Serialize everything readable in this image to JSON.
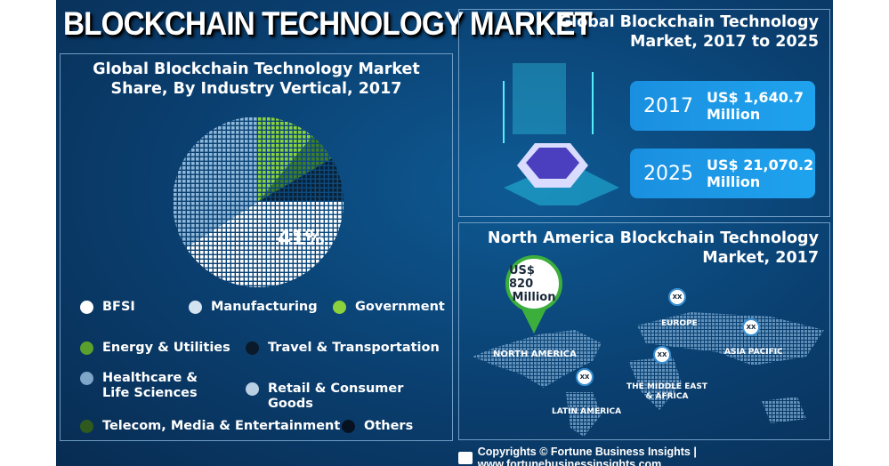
{
  "title": "BLOCKCHAIN TECHNOLOGY MARKET",
  "pie_panel": {
    "title_line1": "Global Blockchain Technology Market",
    "title_line2": "Share, By Industry Vertical, 2017"
  },
  "chart_data": {
    "type": "pie",
    "title": "Global Blockchain Technology Market Share, By Industry Vertical, 2017",
    "slices": [
      {
        "name": "Government",
        "value": 11,
        "color": "#8bd23c"
      },
      {
        "name": "Energy & Utilities",
        "value": 5.5,
        "color": "#3f7d2a"
      },
      {
        "name": "Travel & Transportation",
        "value": 8.5,
        "color": "#0a2238"
      },
      {
        "name": "BFSI",
        "value": 41,
        "color": "#ffffff",
        "label": "41%"
      },
      {
        "name": "Manufacturing",
        "value": 34,
        "color": "#8fb7d9"
      }
    ],
    "legend": [
      {
        "name": "BFSI",
        "color": "#ffffff"
      },
      {
        "name": "Manufacturing",
        "color": "#d4e3f0"
      },
      {
        "name": "Government",
        "color": "#8bd23c"
      },
      {
        "name": "Energy & Utilities",
        "color": "#5aa02c"
      },
      {
        "name": "Travel & Transportation",
        "color": "#0a1a2a"
      },
      {
        "name": "Healthcare & Life Sciences",
        "color": "#7ea6c8"
      },
      {
        "name": "Retail & Consumer Goods",
        "color": "#b9cfe3"
      },
      {
        "name": "Telecom, Media & Entertainment",
        "color": "#2f5a1e"
      },
      {
        "name": "Others",
        "color": "#061220"
      }
    ],
    "legend_placement": "bottom"
  },
  "legend_lines": {
    "healthcare_1": "Healthcare &",
    "healthcare_2": "Life Sciences"
  },
  "global_panel": {
    "title_line1": "Global Blockchain Technology",
    "title_line2": "Market, 2017 to 2025",
    "stats": [
      {
        "year": "2017",
        "value_line1": "US$ 1,640.7",
        "value_line2": "Million"
      },
      {
        "year": "2025",
        "value_line1": "US$ 21,070.2",
        "value_line2": "Million"
      }
    ]
  },
  "na_panel": {
    "title_line1": "North America Blockchain Technology",
    "title_line2": "Market, 2017",
    "callout_line1": "US$ 820",
    "callout_line2": "Million",
    "regions": {
      "north_america": "NORTH AMERICA",
      "europe": "EUROPE",
      "asia_pacific": "ASIA PACIFIC",
      "mea_1": "THE MIDDLE EAST",
      "mea_2": "& AFRICA",
      "latin_america": "LATIN AMERICA"
    },
    "placeholder": "XX"
  },
  "footer": {
    "text": "Copyrights © Fortune Business Insights | www.fortunebusinessinsights.com"
  }
}
